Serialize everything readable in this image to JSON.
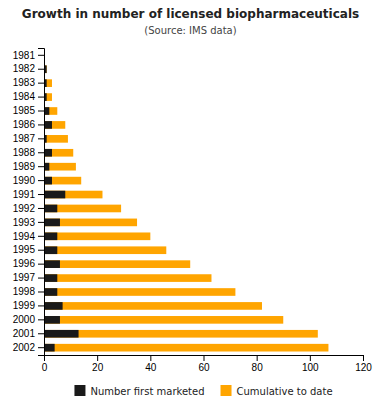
{
  "chart_data": {
    "type": "bar",
    "orientation": "horizontal",
    "stacked": false,
    "title": "Growth in number of licensed biopharmaceuticals",
    "subtitle": "(Source: IMS data)",
    "categories": [
      "1981",
      "1982",
      "1983",
      "1984",
      "1985",
      "1986",
      "1987",
      "1988",
      "1989",
      "1990",
      "1991",
      "1992",
      "1993",
      "1994",
      "1995",
      "1996",
      "1997",
      "1998",
      "1999",
      "2000",
      "2001",
      "2002"
    ],
    "series": [
      {
        "name": "Number first marketed",
        "color": "#1a1a1a",
        "values": [
          0,
          1,
          1,
          1,
          2,
          3,
          1,
          3,
          2,
          3,
          8,
          5,
          6,
          5,
          5,
          6,
          5,
          5,
          7,
          6,
          13,
          4
        ]
      },
      {
        "name": "Cumulative to date",
        "color": "#FFA500",
        "values": [
          0,
          1,
          3,
          3,
          5,
          8,
          9,
          11,
          12,
          14,
          22,
          29,
          35,
          40,
          46,
          55,
          63,
          72,
          82,
          90,
          103,
          107
        ]
      }
    ],
    "xlim": [
      0,
      120
    ],
    "xticks": [
      0,
      20,
      40,
      60,
      80,
      100,
      120
    ],
    "grid": false,
    "legend": "bottom"
  }
}
